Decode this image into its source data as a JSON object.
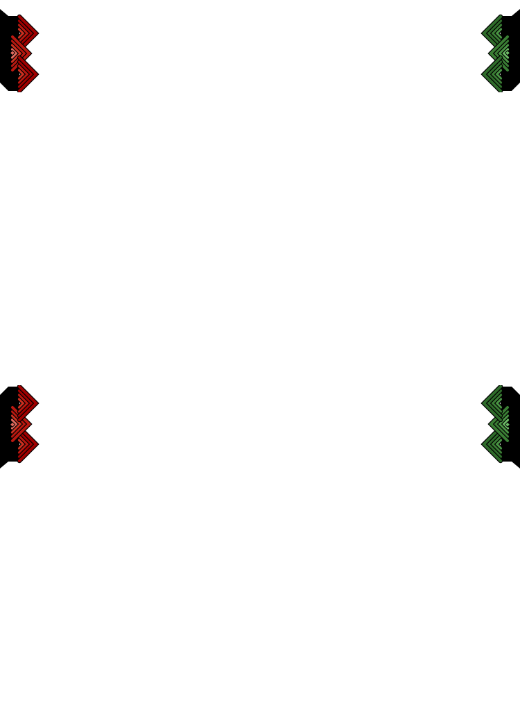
{
  "ornaments": [
    {
      "name": "top-left-ornament",
      "theme": "red",
      "flip_h": false,
      "flip_v": false
    },
    {
      "name": "top-right-ornament",
      "theme": "green",
      "flip_h": true,
      "flip_v": false
    },
    {
      "name": "bottom-left-ornament",
      "theme": "red",
      "flip_h": false,
      "flip_v": true
    },
    {
      "name": "bottom-right-ornament",
      "theme": "green",
      "flip_h": true,
      "flip_v": true
    }
  ],
  "colors": {
    "background": "#ffffff",
    "backing": "#000000",
    "red": [
      "#a00000",
      "#b81810",
      "#cc3020",
      "#e06a5e"
    ],
    "green": [
      "#2e6b2a",
      "#3a7d34",
      "#4a9444",
      "#6cbb66"
    ]
  }
}
